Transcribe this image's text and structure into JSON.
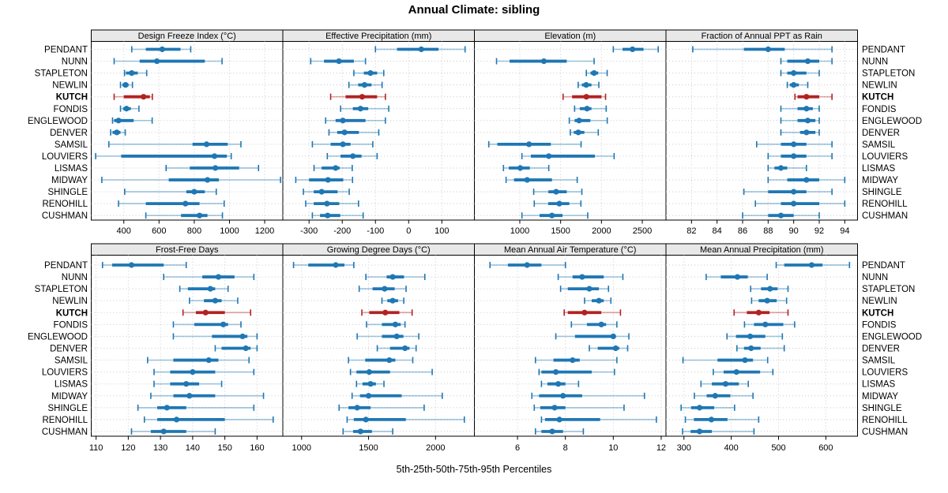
{
  "title": "Annual Climate: sibling",
  "caption": "5th-25th-50th-75th-95th Percentiles",
  "colors": {
    "blue": "#1f77b4",
    "blue_light": "rgba(31,119,180,0.40)",
    "red": "#b22222",
    "red_light": "rgba(178,34,34,0.40)",
    "header_bg": "#e8e8e8",
    "border": "#000000",
    "grid": "#c9c9c9"
  },
  "sites": [
    "PENDANT",
    "NUNN",
    "STAPLETON",
    "NEWLIN",
    "KUTCH",
    "FONDIS",
    "ENGLEWOOD",
    "DENVER",
    "SAMSIL",
    "LOUVIERS",
    "LISMAS",
    "MIDWAY",
    "SHINGLE",
    "RENOHILL",
    "CUSHMAN"
  ],
  "highlight_site": "KUTCH",
  "chart_data": {
    "type": "dotplot-percentiles",
    "percentile_labels": [
      "5th",
      "25th",
      "50th",
      "75th",
      "95th"
    ],
    "grid": "dotted",
    "layout": {
      "rows": 2,
      "cols": 4
    },
    "panels": [
      {
        "title": "Design Freeze Index (°C)",
        "row": 0,
        "col": 0,
        "xlim": [
          215,
          1303
        ],
        "ticks": [
          400,
          600,
          800,
          1000,
          1200
        ],
        "values": [
          [
            445,
            525,
            618,
            722,
            780
          ],
          [
            345,
            490,
            588,
            860,
            958
          ],
          [
            404,
            412,
            445,
            479,
            530
          ],
          [
            381,
            392,
            410,
            427,
            449
          ],
          [
            345,
            400,
            512,
            548,
            562
          ],
          [
            381,
            396,
            415,
            440,
            486
          ],
          [
            336,
            345,
            370,
            456,
            561
          ],
          [
            325,
            336,
            360,
            381,
            408
          ],
          [
            315,
            790,
            870,
            990,
            1065
          ],
          [
            240,
            385,
            915,
            985,
            1010
          ],
          [
            640,
            775,
            920,
            1055,
            1165
          ],
          [
            275,
            655,
            875,
            940,
            1290
          ],
          [
            405,
            755,
            800,
            860,
            925
          ],
          [
            370,
            525,
            750,
            830,
            970
          ],
          [
            525,
            725,
            830,
            875,
            960
          ]
        ]
      },
      {
        "title": "Effective Precipitation (mm)",
        "row": 0,
        "col": 1,
        "xlim": [
          -379,
          198
        ],
        "ticks": [
          -300,
          -200,
          -100,
          0,
          100
        ],
        "values": [
          [
            -100,
            -35,
            38,
            90,
            170
          ],
          [
            -295,
            -255,
            -210,
            -165,
            -130
          ],
          [
            -165,
            -135,
            -115,
            -95,
            -75
          ],
          [
            -180,
            -152,
            -133,
            -112,
            -80
          ],
          [
            -235,
            -190,
            -140,
            -95,
            -70
          ],
          [
            -205,
            -168,
            -145,
            -122,
            -60
          ],
          [
            -250,
            -220,
            -198,
            -130,
            -70
          ],
          [
            -240,
            -215,
            -193,
            -150,
            -90
          ],
          [
            -290,
            -235,
            -198,
            -175,
            -108
          ],
          [
            -245,
            -205,
            -168,
            -142,
            -95
          ],
          [
            -285,
            -262,
            -220,
            -208,
            -170
          ],
          [
            -340,
            -300,
            -243,
            -197,
            -169
          ],
          [
            -317,
            -286,
            -262,
            -214,
            -179
          ],
          [
            -310,
            -286,
            -246,
            -209,
            -151
          ],
          [
            -290,
            -267,
            -244,
            -206,
            -137
          ]
        ]
      },
      {
        "title": "Elevation (m)",
        "row": 0,
        "col": 2,
        "xlim": [
          444,
          2790
        ],
        "ticks": [
          1000,
          1500,
          2000,
          2500
        ],
        "values": [
          [
            2145,
            2258,
            2380,
            2515,
            2695
          ],
          [
            715,
            875,
            1295,
            1575,
            1910
          ],
          [
            1815,
            1865,
            1910,
            1960,
            2070
          ],
          [
            1715,
            1760,
            1813,
            1877,
            1968
          ],
          [
            1530,
            1640,
            1815,
            2000,
            2050
          ],
          [
            1671,
            1735,
            1823,
            1877,
            2058
          ],
          [
            1606,
            1671,
            1726,
            1864,
            2071
          ],
          [
            1619,
            1661,
            1716,
            1790,
            1961
          ],
          [
            620,
            725,
            1113,
            1380,
            1750
          ],
          [
            1026,
            1135,
            1355,
            1919,
            2155
          ],
          [
            800,
            865,
            1006,
            1123,
            1355
          ],
          [
            832,
            929,
            1090,
            1394,
            1703
          ],
          [
            1170,
            1350,
            1445,
            1575,
            1760
          ],
          [
            1177,
            1348,
            1484,
            1606,
            1748
          ],
          [
            1026,
            1242,
            1394,
            1523,
            1832
          ]
        ]
      },
      {
        "title": "Fraction of Annual PPT as Rain",
        "row": 0,
        "col": 3,
        "xlim": [
          80,
          95
        ],
        "ticks": [
          82,
          84,
          86,
          88,
          90,
          92,
          94
        ],
        "values": [
          [
            82.1,
            86.1,
            88.0,
            89.3,
            93.0
          ],
          [
            89.0,
            89.5,
            91.1,
            92.0,
            93.0
          ],
          [
            89.0,
            89.5,
            90.0,
            91.0,
            92.0
          ],
          [
            89.5,
            89.7,
            90.0,
            90.4,
            91.1
          ],
          [
            90.1,
            90.3,
            91.0,
            92.0,
            93.0
          ],
          [
            89.0,
            90.3,
            91.0,
            91.5,
            92.0
          ],
          [
            89.0,
            90.3,
            91.1,
            91.7,
            92.0
          ],
          [
            89.0,
            90.5,
            91.0,
            91.7,
            92.0
          ],
          [
            87.1,
            89.0,
            90.0,
            91.0,
            93.0
          ],
          [
            88.0,
            89.0,
            90.0,
            91.0,
            93.0
          ],
          [
            88.0,
            88.5,
            89.0,
            89.5,
            91.0
          ],
          [
            88.0,
            89.5,
            91.0,
            92.0,
            94.0
          ],
          [
            86.1,
            88.0,
            90.0,
            91.0,
            93.0
          ],
          [
            87.0,
            89.0,
            90.0,
            92.0,
            94.0
          ],
          [
            86.0,
            88.0,
            89.0,
            90.0,
            92.0
          ]
        ]
      },
      {
        "title": "Frost-Free Days",
        "row": 1,
        "col": 0,
        "xlim": [
          108.5,
          168
        ],
        "ticks": [
          110,
          120,
          130,
          140,
          150,
          160
        ],
        "values": [
          [
            112,
            115,
            121,
            131,
            138
          ],
          [
            131,
            143,
            148,
            153,
            159
          ],
          [
            136,
            138.5,
            145.5,
            147,
            151
          ],
          [
            139,
            143.5,
            147,
            149,
            154
          ],
          [
            137,
            141,
            144,
            150,
            158
          ],
          [
            134,
            140.5,
            149.5,
            151,
            155
          ],
          [
            134,
            146,
            155.5,
            157,
            160
          ],
          [
            147,
            149,
            156.5,
            158,
            160
          ],
          [
            126,
            134,
            145,
            148,
            157.5
          ],
          [
            128,
            133,
            140,
            147,
            159
          ],
          [
            128,
            133,
            138,
            142,
            149
          ],
          [
            127,
            134,
            139,
            147,
            162
          ],
          [
            123,
            129,
            132,
            138,
            159
          ],
          [
            125,
            129,
            135,
            150,
            165
          ],
          [
            121,
            127,
            131,
            138,
            147
          ]
        ]
      },
      {
        "title": "Growing Degree Days (°C)",
        "row": 1,
        "col": 1,
        "xlim": [
          860,
          2290
        ],
        "ticks": [
          1000,
          1500,
          2000
        ],
        "values": [
          [
            940,
            1050,
            1255,
            1320,
            1390
          ],
          [
            1480,
            1635,
            1680,
            1765,
            1920
          ],
          [
            1430,
            1530,
            1620,
            1695,
            1780
          ],
          [
            1600,
            1640,
            1680,
            1720,
            1763
          ],
          [
            1450,
            1505,
            1625,
            1730,
            1825
          ],
          [
            1485,
            1600,
            1700,
            1740,
            1772
          ],
          [
            1415,
            1600,
            1710,
            1760,
            1875
          ],
          [
            1565,
            1660,
            1772,
            1805,
            1855
          ],
          [
            1350,
            1475,
            1655,
            1700,
            1830
          ],
          [
            1365,
            1410,
            1505,
            1660,
            1975
          ],
          [
            1410,
            1455,
            1515,
            1555,
            1615
          ],
          [
            1377,
            1436,
            1500,
            1747,
            2050
          ],
          [
            1280,
            1350,
            1415,
            1515,
            1915
          ],
          [
            1340,
            1390,
            1480,
            1778,
            2215
          ],
          [
            1310,
            1385,
            1440,
            1525,
            1680
          ]
        ]
      },
      {
        "title": "Mean Annual Air Temperature (°C)",
        "row": 1,
        "col": 2,
        "xlim": [
          4.2,
          12.2
        ],
        "ticks": [
          6,
          8,
          10,
          12
        ],
        "values": [
          [
            4.85,
            5.6,
            6.4,
            7.0,
            8.0
          ],
          [
            7.7,
            8.3,
            8.7,
            9.6,
            10.4
          ],
          [
            7.8,
            8.1,
            9.0,
            9.4,
            9.8
          ],
          [
            8.8,
            9.1,
            9.4,
            9.6,
            9.9
          ],
          [
            7.95,
            8.1,
            8.8,
            9.5,
            10.3
          ],
          [
            8.25,
            8.9,
            9.5,
            9.7,
            10.15
          ],
          [
            7.6,
            8.4,
            10.0,
            10.1,
            10.65
          ],
          [
            9.0,
            9.35,
            10.1,
            10.25,
            10.6
          ],
          [
            6.75,
            7.5,
            8.3,
            8.6,
            10.15
          ],
          [
            6.9,
            7.0,
            7.6,
            9.1,
            10.05
          ],
          [
            7.0,
            7.25,
            7.7,
            8.0,
            8.55
          ],
          [
            6.6,
            6.9,
            7.9,
            8.7,
            11.3
          ],
          [
            6.7,
            6.95,
            7.55,
            8.0,
            10.45
          ],
          [
            7.0,
            7.15,
            7.75,
            9.45,
            11.8
          ],
          [
            6.75,
            7.0,
            7.45,
            7.9,
            8.75
          ]
        ]
      },
      {
        "title": "Mean Annual Precipitation (mm)",
        "row": 1,
        "col": 3,
        "xlim": [
          262,
          667
        ],
        "ticks": [
          300,
          400,
          500,
          600
        ],
        "values": [
          [
            495,
            512,
            570,
            593,
            650
          ],
          [
            347,
            378,
            413,
            435,
            476
          ],
          [
            441,
            463,
            482,
            498,
            520
          ],
          [
            443,
            458,
            476,
            496,
            517
          ],
          [
            406,
            433,
            458,
            481,
            520
          ],
          [
            428,
            448,
            472,
            510,
            534
          ],
          [
            391,
            410,
            440,
            472,
            508
          ],
          [
            412,
            427,
            442,
            462,
            512
          ],
          [
            298,
            371,
            429,
            446,
            477
          ],
          [
            362,
            384,
            411,
            461,
            488
          ],
          [
            336,
            359,
            388,
            416,
            436
          ],
          [
            322,
            348,
            366,
            398,
            446
          ],
          [
            294,
            315,
            333,
            364,
            407
          ],
          [
            303,
            321,
            358,
            392,
            458
          ],
          [
            297,
            314,
            333,
            359,
            448
          ]
        ]
      }
    ]
  }
}
